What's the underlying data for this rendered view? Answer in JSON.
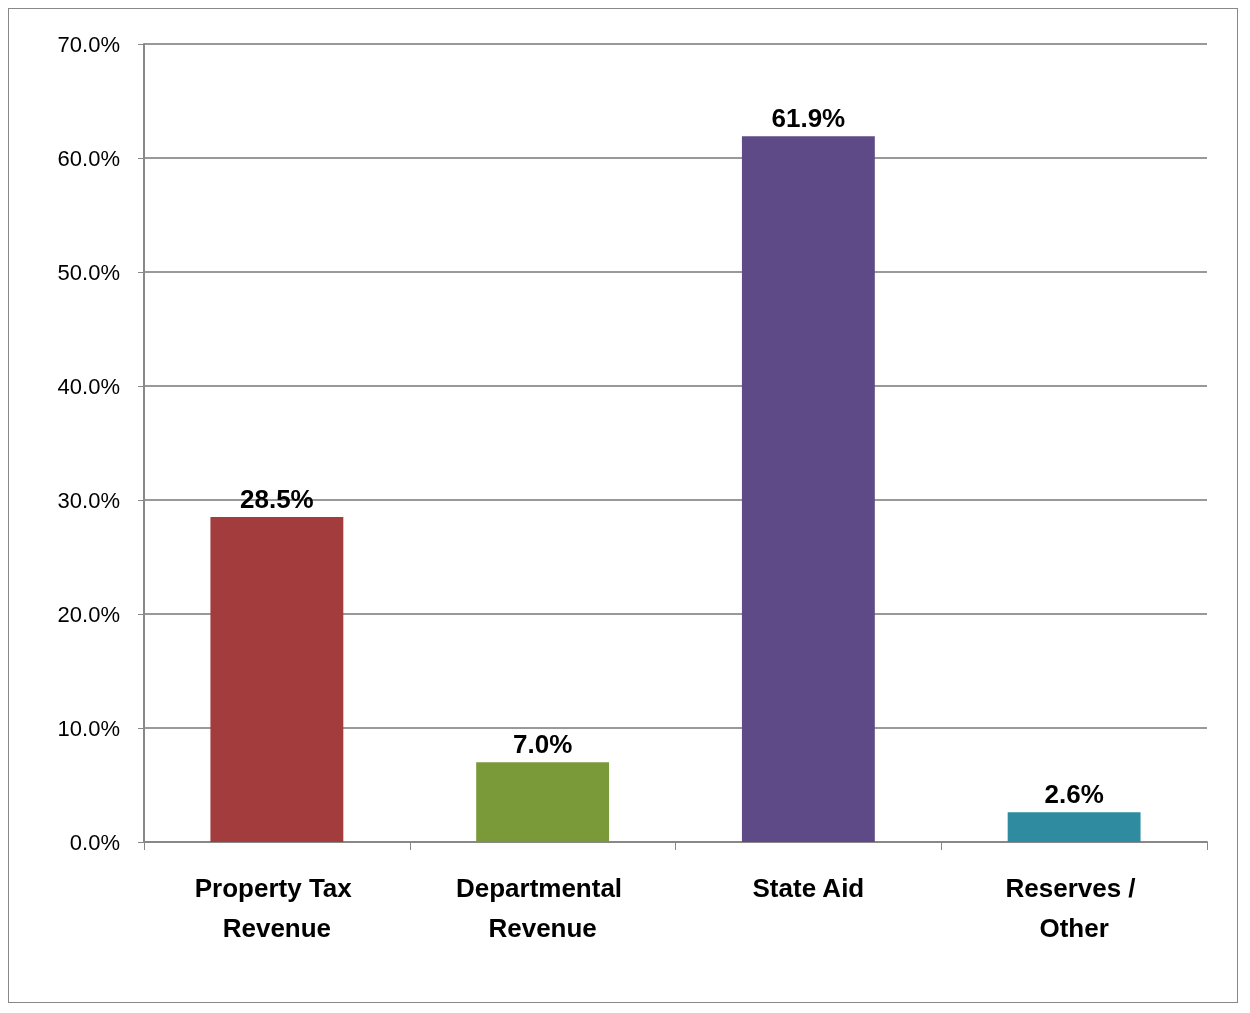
{
  "chart_data": {
    "type": "bar",
    "categories": [
      "Property Tax Revenue",
      "Departmental Revenue",
      "State Aid",
      "Reserves / Other"
    ],
    "values": [
      28.5,
      7.0,
      61.9,
      2.6
    ],
    "colors": [
      "#a33c3c",
      "#7a9a3a",
      "#5e4a86",
      "#2f8ba0"
    ],
    "value_labels": [
      "28.5%",
      "7.0%",
      "61.9%",
      "2.6%"
    ],
    "ylim": [
      0,
      70
    ],
    "yticks": [
      {
        "value": 0,
        "label": "0.0%"
      },
      {
        "value": 10,
        "label": "10.0%"
      },
      {
        "value": 20,
        "label": "20.0%"
      },
      {
        "value": 30,
        "label": "30.0%"
      },
      {
        "value": 40,
        "label": "40.0%"
      },
      {
        "value": 50,
        "label": "50.0%"
      },
      {
        "value": 60,
        "label": "60.0%"
      },
      {
        "value": 70,
        "label": "70.0%"
      }
    ],
    "grid": "y"
  }
}
